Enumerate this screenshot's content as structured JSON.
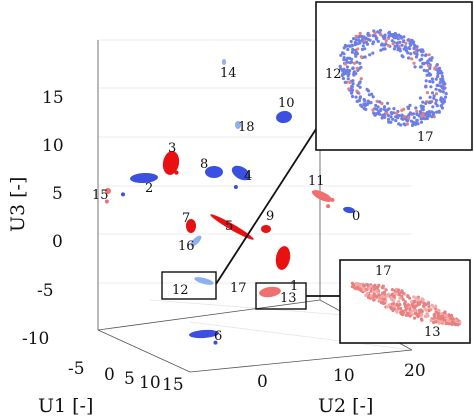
{
  "chart_data": {
    "type": "scatter",
    "projection": "3d",
    "title": "",
    "axes": {
      "x": {
        "label": "U1 [-]",
        "ticks": [
          "-5",
          "0",
          "5",
          "10",
          "15"
        ]
      },
      "y": {
        "label": "U2 [-]",
        "ticks": [
          "0",
          "10",
          "20"
        ]
      },
      "z": {
        "label": "U3 [-]",
        "ticks": [
          "15",
          "10",
          "5",
          "0",
          "-5",
          "-10"
        ]
      }
    },
    "grid": true,
    "colors": {
      "blue": "#3b50e0",
      "light_blue": "#8fb0f0",
      "red": "#e81010",
      "light_red": "#f07070",
      "insert_blue": "#6d7fe6",
      "insert_red": "#e88080"
    },
    "clusters": [
      {
        "label": "0",
        "u1": 14,
        "u2": 20,
        "u3": 2,
        "color": "blue"
      },
      {
        "label": "1",
        "u1": 9,
        "u2": 10,
        "u3": -6,
        "color": "red"
      },
      {
        "label": "2",
        "u1": -4,
        "u2": -1,
        "u3": 6,
        "color": "blue"
      },
      {
        "label": "3",
        "u1": 2,
        "u2": 0,
        "u3": 8,
        "color": "red"
      },
      {
        "label": "4",
        "u1": 5,
        "u2": 8,
        "u3": 5,
        "color": "blue"
      },
      {
        "label": "5",
        "u1": 6,
        "u2": 6,
        "u3": -1,
        "color": "red"
      },
      {
        "label": "6",
        "u1": 4,
        "u2": 3,
        "u3": -12,
        "color": "blue"
      },
      {
        "label": "7",
        "u1": 3,
        "u2": 2,
        "u3": 0,
        "color": "red"
      },
      {
        "label": "8",
        "u1": 4,
        "u2": 4,
        "u3": 6,
        "color": "blue"
      },
      {
        "label": "9",
        "u1": 8,
        "u2": 9,
        "u3": -1,
        "color": "red"
      },
      {
        "label": "10",
        "u1": 9,
        "u2": 12,
        "u3": 12,
        "color": "blue"
      },
      {
        "label": "11",
        "u1": 11,
        "u2": 15,
        "u3": 3,
        "color": "light_red"
      },
      {
        "label": "12",
        "u1": 6,
        "u2": 3,
        "u3": -7,
        "color": "light_blue"
      },
      {
        "label": "13",
        "u1": 12,
        "u2": 10,
        "u3": -9,
        "color": "light_red"
      },
      {
        "label": "14",
        "u1": 4,
        "u2": 10,
        "u3": 18,
        "color": "light_blue"
      },
      {
        "label": "15",
        "u1": -6,
        "u2": -3,
        "u3": 4,
        "color": "light_red"
      },
      {
        "label": "16",
        "u1": 2,
        "u2": 1,
        "u3": -3,
        "color": "light_blue"
      },
      {
        "label": "17",
        "u1": 10,
        "u2": 9,
        "u3": -8,
        "color": "light_red"
      },
      {
        "label": "18",
        "u1": 5,
        "u2": 8,
        "u3": 11,
        "color": "light_blue"
      }
    ],
    "insets": [
      {
        "labels": [
          "12",
          "17"
        ],
        "source_label": "12"
      },
      {
        "labels": [
          "17",
          "13"
        ],
        "source_label": "13"
      }
    ]
  }
}
